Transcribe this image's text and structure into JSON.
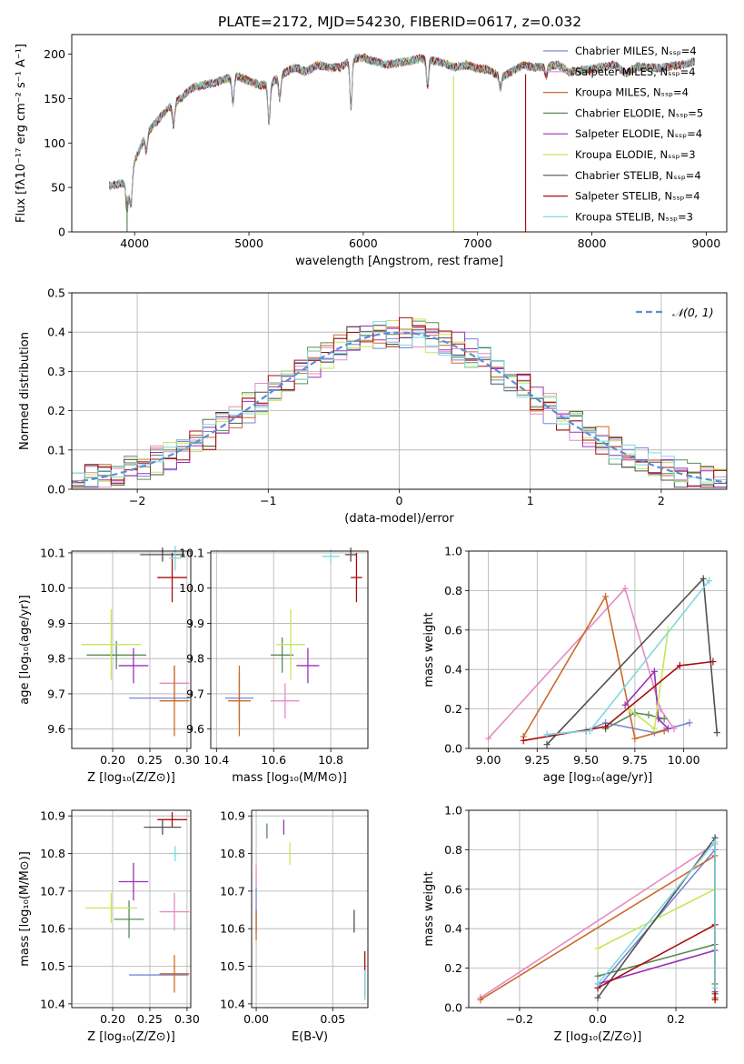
{
  "title": "PLATE=2172, MJD=54230, FIBERID=0617, z=0.032",
  "colors": [
    "#7b86d6",
    "#e78ac3",
    "#cc6a28",
    "#5a8a5a",
    "#9932b8",
    "#c8e65a",
    "#505050",
    "#a80d0d",
    "#7fd8e0"
  ],
  "chart_data": [
    {
      "type": "line",
      "id": "spectrum",
      "xlabel": "wavelength [Angstrom, rest frame]",
      "ylabel": "Flux [fλ10⁻¹⁷ erg cm⁻² s⁻¹ A⁻¹]",
      "xlim": [
        3450,
        9180
      ],
      "ylim": [
        0,
        222
      ],
      "xticks": [
        4000,
        5000,
        6000,
        7000,
        8000,
        9000
      ],
      "yticks": [
        0,
        50,
        100,
        150,
        200
      ],
      "legend": "top-right",
      "grid": false,
      "series_names": [
        "Chabrier MILES, Nₛₛₚ=4",
        "Salpeter MILES, Nₛₛₚ=4",
        "Kroupa MILES, Nₛₛₚ=4",
        "Chabrier ELODIE, Nₛₛₚ=5",
        "Salpeter ELODIE, Nₛₛₚ=4",
        "Kroupa ELODIE, Nₛₛₚ=3",
        "Chabrier STELIB, Nₛₛₚ=4",
        "Salpeter STELIB, Nₛₛₚ=4",
        "Kroupa STELIB, Nₛₛₚ=3"
      ],
      "x": [
        3800,
        3900,
        3950,
        4000,
        4100,
        4200,
        4300,
        4400,
        4500,
        4600,
        4700,
        4800,
        4900,
        5000,
        5100,
        5200,
        5300,
        5400,
        5500,
        5600,
        5700,
        5800,
        5900,
        6000,
        6100,
        6200,
        6300,
        6400,
        6500,
        6600,
        6700,
        6800,
        6900,
        7000,
        7100,
        7200,
        7300,
        7400,
        7500,
        7600,
        7700,
        7800,
        7900,
        8000,
        8100,
        8200,
        8300,
        8400,
        8500,
        8600,
        8700,
        8800,
        8900
      ],
      "flux": [
        52,
        55,
        48,
        80,
        110,
        125,
        140,
        150,
        162,
        165,
        168,
        172,
        175,
        170,
        165,
        168,
        178,
        185,
        180,
        188,
        185,
        185,
        195,
        196,
        192,
        188,
        190,
        192,
        195,
        193,
        190,
        185,
        188,
        184,
        182,
        174,
        180,
        188,
        185,
        186,
        188,
        180,
        182,
        183,
        186,
        188,
        178,
        186,
        185,
        184,
        187,
        188,
        192
      ],
      "dips": [
        [
          3934,
          25
        ],
        [
          3969,
          30
        ],
        [
          4102,
          20
        ],
        [
          4340,
          25
        ],
        [
          4861,
          30
        ],
        [
          5175,
          45
        ],
        [
          5270,
          25
        ],
        [
          5893,
          55
        ],
        [
          6563,
          30
        ],
        [
          7200,
          12
        ],
        [
          7600,
          10
        ]
      ],
      "drops": [
        [
          3934,
          "#5a8a5a"
        ],
        [
          6790,
          "#c8e65a"
        ],
        [
          7420,
          "#a80d0d"
        ]
      ]
    },
    {
      "type": "line",
      "id": "residuals",
      "xlabel": "(data-model)/error",
      "ylabel": "Normed distribution",
      "xlim": [
        -2.5,
        2.5
      ],
      "ylim": [
        0,
        0.5
      ],
      "xticks": [
        -2,
        -1,
        0,
        1,
        2
      ],
      "yticks": [
        0.0,
        0.1,
        0.2,
        0.3,
        0.4,
        0.5
      ],
      "grid": true,
      "legend": "top-right",
      "reference_curve": "N(0,1)",
      "bin_width": 0.1
    },
    {
      "type": "scatter",
      "id": "age-vs-Z",
      "xlabel": "Z [log₁₀(Z/Z⊙)]",
      "ylabel": "age  [log₁₀(age/yr)]",
      "xlim": [
        0.145,
        0.305
      ],
      "ylim": [
        9.545,
        10.105
      ],
      "xticks": [
        0.2,
        0.25,
        0.3
      ],
      "yticks": [
        9.6,
        9.7,
        9.8,
        9.9,
        10.0,
        10.1
      ],
      "grid": true,
      "points": [
        {
          "x": 0.262,
          "y": 9.688,
          "xerr": 0.04,
          "yerr": 0.0
        },
        {
          "x": 0.283,
          "y": 9.73,
          "xerr": 0.02,
          "yerr": 0.05
        },
        {
          "x": 0.283,
          "y": 9.68,
          "xerr": 0.02,
          "yerr": 0.1
        },
        {
          "x": 0.205,
          "y": 9.81,
          "xerr": 0.04,
          "yerr": 0.04
        },
        {
          "x": 0.228,
          "y": 9.78,
          "xerr": 0.02,
          "yerr": 0.05
        },
        {
          "x": 0.198,
          "y": 9.84,
          "xerr": 0.04,
          "yerr": 0.1
        },
        {
          "x": 0.267,
          "y": 10.095,
          "xerr": 0.03,
          "yerr": 0.02
        },
        {
          "x": 0.28,
          "y": 10.03,
          "xerr": 0.02,
          "yerr": 0.07
        },
        {
          "x": 0.284,
          "y": 10.085,
          "xerr": 0.008,
          "yerr": 0.035
        }
      ]
    },
    {
      "type": "scatter",
      "id": "age-vs-mass",
      "xlabel": "mass [log₁₀(M/M⊙)]",
      "ylabel": "",
      "xlim": [
        10.38,
        10.93
      ],
      "ylim": [
        9.545,
        10.105
      ],
      "xticks": [
        10.4,
        10.6,
        10.8
      ],
      "yticks": [
        9.6,
        9.7,
        9.8,
        9.9,
        10.0,
        10.1
      ],
      "grid": true,
      "points": [
        {
          "x": 10.48,
          "y": 9.688,
          "xerr": 0.05,
          "yerr": 0.07
        },
        {
          "x": 10.64,
          "y": 9.68,
          "xerr": 0.05,
          "yerr": 0.05
        },
        {
          "x": 10.48,
          "y": 9.68,
          "xerr": 0.04,
          "yerr": 0.1
        },
        {
          "x": 10.63,
          "y": 9.81,
          "xerr": 0.04,
          "yerr": 0.05
        },
        {
          "x": 10.72,
          "y": 9.78,
          "xerr": 0.04,
          "yerr": 0.05
        },
        {
          "x": 10.66,
          "y": 9.84,
          "xerr": 0.05,
          "yerr": 0.1
        },
        {
          "x": 10.87,
          "y": 10.095,
          "xerr": 0.02,
          "yerr": 0.02
        },
        {
          "x": 10.89,
          "y": 10.03,
          "xerr": 0.02,
          "yerr": 0.07
        },
        {
          "x": 10.8,
          "y": 10.09,
          "xerr": 0.03,
          "yerr": 0.02
        }
      ]
    },
    {
      "type": "line",
      "id": "massweight-vs-age",
      "xlabel": "age  [log₁₀(age/yr)]",
      "ylabel": "mass weight",
      "xlim": [
        8.9,
        10.22
      ],
      "ylim": [
        0,
        1.0
      ],
      "xticks": [
        9.0,
        9.25,
        9.5,
        9.75,
        10.0
      ],
      "yticks": [
        0.0,
        0.2,
        0.4,
        0.6,
        0.8,
        1.0
      ],
      "grid": true,
      "series": [
        {
          "x": [
            9.3,
            9.5,
            9.6,
            9.85,
            10.03
          ],
          "y": [
            0.07,
            0.09,
            0.13,
            0.08,
            0.13
          ]
        },
        {
          "x": [
            9.0,
            9.7,
            9.88,
            9.95
          ],
          "y": [
            0.05,
            0.81,
            0.2,
            0.1
          ]
        },
        {
          "x": [
            9.18,
            9.6,
            9.75,
            9.9
          ],
          "y": [
            0.06,
            0.77,
            0.05,
            0.09
          ]
        },
        {
          "x": [
            9.6,
            9.75,
            9.82,
            9.9
          ],
          "y": [
            0.1,
            0.18,
            0.17,
            0.15
          ]
        },
        {
          "x": [
            9.7,
            9.85,
            9.87,
            9.92
          ],
          "y": [
            0.22,
            0.39,
            0.15,
            0.1
          ]
        },
        {
          "x": [
            9.72,
            9.85,
            9.92
          ],
          "y": [
            0.2,
            0.1,
            0.6
          ]
        },
        {
          "x": [
            9.3,
            10.1,
            10.17
          ],
          "y": [
            0.02,
            0.86,
            0.08
          ]
        },
        {
          "x": [
            9.18,
            9.6,
            9.98,
            10.15
          ],
          "y": [
            0.04,
            0.11,
            0.42,
            0.44
          ]
        },
        {
          "x": [
            9.3,
            9.52,
            10.13
          ],
          "y": [
            0.07,
            0.09,
            0.85
          ]
        }
      ]
    },
    {
      "type": "scatter",
      "id": "mass-vs-Z",
      "xlabel": "Z [log₁₀(Z/Z⊙)]",
      "ylabel": "mass [log₁₀(M/M⊙)]",
      "xlim": [
        0.145,
        0.305
      ],
      "ylim": [
        10.39,
        10.915
      ],
      "xticks": [
        0.2,
        0.25,
        0.3
      ],
      "yticks": [
        10.4,
        10.5,
        10.6,
        10.7,
        10.8,
        10.9
      ],
      "grid": true,
      "points": [
        {
          "x": 0.262,
          "y": 10.477,
          "xerr": 0.04,
          "yerr": 0.0
        },
        {
          "x": 0.283,
          "y": 10.645,
          "xerr": 0.02,
          "yerr": 0.05
        },
        {
          "x": 0.283,
          "y": 10.48,
          "xerr": 0.02,
          "yerr": 0.05
        },
        {
          "x": 0.222,
          "y": 10.625,
          "xerr": 0.02,
          "yerr": 0.05
        },
        {
          "x": 0.228,
          "y": 10.725,
          "xerr": 0.02,
          "yerr": 0.05
        },
        {
          "x": 0.198,
          "y": 10.655,
          "xerr": 0.035,
          "yerr": 0.04
        },
        {
          "x": 0.267,
          "y": 10.87,
          "xerr": 0.025,
          "yerr": 0.02
        },
        {
          "x": 0.28,
          "y": 10.89,
          "xerr": 0.02,
          "yerr": 0.02
        },
        {
          "x": 0.284,
          "y": 10.8,
          "xerr": 0.008,
          "yerr": 0.02
        }
      ]
    },
    {
      "type": "scatter",
      "id": "mass-vs-EBV",
      "xlabel": "E(B-V)",
      "ylabel": "",
      "xlim": [
        -0.003,
        0.073
      ],
      "ylim": [
        10.39,
        10.915
      ],
      "xticks": [
        0.0,
        0.05
      ],
      "yticks": [
        10.4,
        10.5,
        10.6,
        10.7,
        10.8,
        10.9
      ],
      "grid": true,
      "points": [
        {
          "x": 0.0,
          "y": 10.65,
          "yerr": 0.06
        },
        {
          "x": 0.0,
          "y": 10.74,
          "yerr": 0.03
        },
        {
          "x": 0.0,
          "y": 10.61,
          "yerr": 0.04
        },
        {
          "x": 0.007,
          "y": 10.86,
          "yerr": 0.02
        },
        {
          "x": 0.018,
          "y": 10.87,
          "yerr": 0.02
        },
        {
          "x": 0.022,
          "y": 10.8,
          "yerr": 0.03
        },
        {
          "x": 0.064,
          "y": 10.62,
          "yerr": 0.03
        },
        {
          "x": 0.071,
          "y": 10.48,
          "yerr": 0.06
        },
        {
          "x": 0.071,
          "y": 10.45,
          "yerr": 0.04
        }
      ]
    },
    {
      "type": "line",
      "id": "massweight-vs-Z",
      "xlabel": "Z [log₁₀(Z/Z⊙)]",
      "ylabel": "mass weight",
      "xlim": [
        -0.33,
        0.33
      ],
      "ylim": [
        0,
        1.0
      ],
      "xticks": [
        -0.2,
        0.0,
        0.2
      ],
      "yticks": [
        0.0,
        0.2,
        0.4,
        0.6,
        0.8,
        1.0
      ],
      "grid": true,
      "series": [
        {
          "x": [
            0.0,
            0.3,
            0.3
          ],
          "y": [
            0.1,
            0.8,
            0.05
          ]
        },
        {
          "x": [
            -0.3,
            0.3,
            0.3
          ],
          "y": [
            0.05,
            0.83,
            0.12
          ]
        },
        {
          "x": [
            -0.3,
            0.3,
            0.3
          ],
          "y": [
            0.04,
            0.77,
            0.05
          ]
        },
        {
          "x": [
            0.0,
            0.3,
            0.3
          ],
          "y": [
            0.16,
            0.32,
            0.12
          ]
        },
        {
          "x": [
            0.0,
            0.3,
            0.3
          ],
          "y": [
            0.12,
            0.29,
            0.08
          ]
        },
        {
          "x": [
            0.0,
            0.3,
            0.3
          ],
          "y": [
            0.3,
            0.6,
            0.1
          ]
        },
        {
          "x": [
            0.0,
            0.3,
            0.3
          ],
          "y": [
            0.05,
            0.86,
            0.07
          ]
        },
        {
          "x": [
            0.0,
            0.3,
            0.3
          ],
          "y": [
            0.1,
            0.42,
            0.04
          ]
        },
        {
          "x": [
            0.0,
            0.3,
            0.3
          ],
          "y": [
            0.12,
            0.84,
            0.1
          ]
        }
      ]
    }
  ]
}
